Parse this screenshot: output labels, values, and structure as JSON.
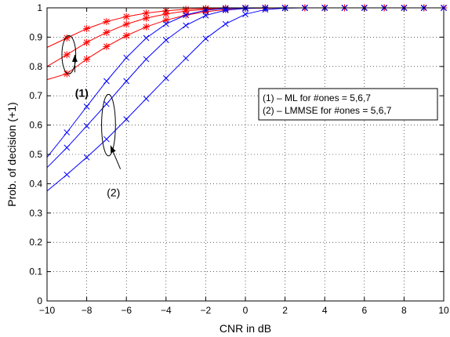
{
  "chart_data": {
    "type": "line",
    "xlabel": "CNR in dB",
    "ylabel": "Prob. of decision (+1)",
    "xlim": [
      -10,
      10
    ],
    "ylim": [
      0,
      1
    ],
    "xticks": [
      -10,
      -8,
      -6,
      -4,
      -2,
      0,
      2,
      4,
      6,
      8,
      10
    ],
    "yticks": [
      0,
      0.1,
      0.2,
      0.3,
      0.4,
      0.5,
      0.6,
      0.7,
      0.8,
      0.9,
      1
    ],
    "xtick_labels": [
      "−10",
      "−8",
      "−6",
      "−4",
      "−2",
      "0",
      "2",
      "4",
      "6",
      "8",
      "10"
    ],
    "ytick_labels": [
      "0",
      "0.1",
      "0.2",
      "0.3",
      "0.4",
      "0.5",
      "0.6",
      "0.7",
      "0.8",
      "0.9",
      "1"
    ],
    "grid": true,
    "legend": {
      "placement": "center-right",
      "entries": [
        "(1) – ML for #ones = 5,6,7",
        "(2) – LMMSE for #ones = 5,6,7"
      ]
    },
    "annotations": [
      {
        "text": "(1)",
        "bold": true,
        "ellipse_center": [
          -8.9,
          0.84
        ],
        "ellipse_radius": [
          0.35,
          0.065
        ],
        "arrow_from": [
          -8.6,
          0.78
        ],
        "arrow_to": [
          -8.6,
          0.84
        ]
      },
      {
        "text": "(2)",
        "bold": false,
        "ellipse_center": [
          -6.9,
          0.6
        ],
        "ellipse_radius": [
          0.35,
          0.105
        ],
        "arrow_from": [
          -6.3,
          0.45
        ],
        "arrow_to": [
          -6.8,
          0.53
        ]
      }
    ],
    "marker_x": [
      -9,
      -8,
      -7,
      -6,
      -5,
      -4,
      -3,
      -2,
      -1,
      0,
      1,
      2,
      3,
      4,
      5,
      6,
      7,
      8,
      9,
      10
    ],
    "series": [
      {
        "group": "ML",
        "ones": 5,
        "color": "#ff0000",
        "marker": "asterisk",
        "x_start": -10,
        "y": [
          0.897,
          0.929,
          0.953,
          0.97,
          0.982,
          0.99,
          0.995,
          0.998,
          0.999,
          1,
          1,
          1,
          1,
          1,
          1,
          1,
          1,
          1,
          1,
          1
        ]
      },
      {
        "group": "ML",
        "ones": 6,
        "color": "#ff0000",
        "marker": "asterisk",
        "x_start": -10,
        "y": [
          0.84,
          0.882,
          0.916,
          0.944,
          0.965,
          0.979,
          0.989,
          0.995,
          0.998,
          0.999,
          1,
          1,
          1,
          1,
          1,
          1,
          1,
          1,
          1,
          1
        ]
      },
      {
        "group": "ML",
        "ones": 7,
        "color": "#ff0000",
        "marker": "asterisk",
        "x_start": -10,
        "y": [
          0.775,
          0.825,
          0.868,
          0.905,
          0.935,
          0.958,
          0.975,
          0.987,
          0.994,
          0.998,
          0.999,
          1,
          1,
          1,
          1,
          1,
          1,
          1,
          1,
          1
        ]
      },
      {
        "group": "LMMSE",
        "ones": 5,
        "color": "#0000ff",
        "marker": "x",
        "x_start": -10,
        "y": [
          0.575,
          0.663,
          0.75,
          0.83,
          0.897,
          0.945,
          0.976,
          0.992,
          0.998,
          1,
          1,
          1,
          1,
          1,
          1,
          1,
          1,
          1,
          1,
          1
        ]
      },
      {
        "group": "LMMSE",
        "ones": 6,
        "color": "#0000ff",
        "marker": "x",
        "x_start": -10,
        "y": [
          0.523,
          0.597,
          0.672,
          0.75,
          0.825,
          0.89,
          0.94,
          0.974,
          0.992,
          0.998,
          1,
          1,
          1,
          1,
          1,
          1,
          1,
          1,
          1,
          1
        ]
      },
      {
        "group": "LMMSE",
        "ones": 7,
        "color": "#0000ff",
        "marker": "x",
        "x_start": -10,
        "y": [
          0.431,
          0.49,
          0.552,
          0.62,
          0.69,
          0.76,
          0.828,
          0.895,
          0.945,
          0.978,
          0.994,
          0.999,
          1,
          1,
          1,
          1,
          1,
          1,
          1,
          1
        ]
      }
    ],
    "series_start_y": {
      "ML": [
        0.865,
        0.8,
        0.755
      ],
      "LMMSE": [
        0.49,
        0.455,
        0.375
      ]
    }
  }
}
